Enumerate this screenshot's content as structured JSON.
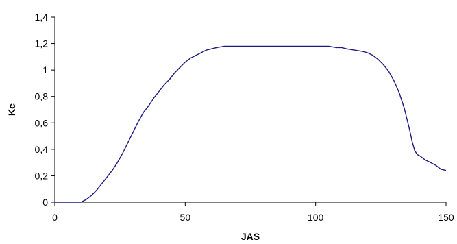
{
  "chart_data": {
    "type": "line",
    "xlabel": "JAS",
    "ylabel": "Kc",
    "xlim": [
      0,
      150
    ],
    "ylim": [
      0,
      1.4
    ],
    "xticks": [
      0,
      50,
      100,
      150
    ],
    "yticks": [
      0,
      0.2,
      0.4,
      0.6,
      0.8,
      1,
      1.2,
      1.4
    ],
    "xtick_labels": [
      "0",
      "50",
      "100",
      "150"
    ],
    "ytick_labels": [
      "0",
      "0,2",
      "0,4",
      "0,6",
      "0,8",
      "1",
      "1,2",
      "1,4"
    ],
    "grid": false,
    "legend": "none",
    "color": "#1a1a80",
    "series": [
      {
        "x": [
          0,
          5,
          10,
          12,
          14,
          16,
          18,
          20,
          22,
          24,
          26,
          28,
          30,
          32,
          34,
          36,
          38,
          40,
          42,
          44,
          46,
          48,
          50,
          52,
          54,
          56,
          58,
          60,
          62,
          65,
          70,
          75,
          80,
          85,
          90,
          95,
          100,
          105,
          108,
          110,
          112,
          115,
          118,
          120,
          122,
          124,
          126,
          128,
          130,
          132,
          134,
          135,
          136,
          137,
          138,
          139,
          140,
          142,
          144,
          146,
          148,
          150
        ],
        "values": [
          0,
          0,
          0,
          0.02,
          0.05,
          0.09,
          0.14,
          0.19,
          0.24,
          0.3,
          0.37,
          0.45,
          0.53,
          0.61,
          0.68,
          0.73,
          0.79,
          0.84,
          0.89,
          0.93,
          0.98,
          1.02,
          1.06,
          1.09,
          1.11,
          1.13,
          1.15,
          1.16,
          1.17,
          1.18,
          1.18,
          1.18,
          1.18,
          1.18,
          1.18,
          1.18,
          1.18,
          1.18,
          1.17,
          1.17,
          1.16,
          1.15,
          1.14,
          1.13,
          1.11,
          1.08,
          1.04,
          0.99,
          0.92,
          0.83,
          0.71,
          0.63,
          0.55,
          0.46,
          0.39,
          0.36,
          0.35,
          0.32,
          0.3,
          0.28,
          0.25,
          0.24
        ]
      }
    ]
  }
}
